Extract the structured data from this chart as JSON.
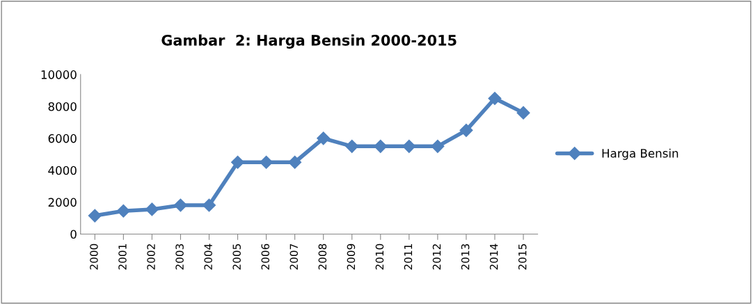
{
  "chart_data": {
    "type": "line",
    "title": "Gambar  2: Harga Bensin 2000-2015",
    "categories": [
      "2000",
      "2001",
      "2002",
      "2003",
      "2004",
      "2005",
      "2006",
      "2007",
      "2008",
      "2009",
      "2010",
      "2011",
      "2012",
      "2013",
      "2014",
      "2015"
    ],
    "series": [
      {
        "name": "Harga Bensin",
        "color": "#4f81bd",
        "values": [
          1150,
          1450,
          1550,
          1810,
          1810,
          4500,
          4500,
          4500,
          6000,
          5500,
          5500,
          5500,
          5500,
          6500,
          8500,
          7600
        ]
      }
    ],
    "ylim": [
      0,
      10000
    ],
    "yticks": [
      0,
      2000,
      4000,
      6000,
      8000,
      10000
    ],
    "grid": false,
    "legend": "right",
    "marker": "diamond",
    "line_style": "solid"
  }
}
